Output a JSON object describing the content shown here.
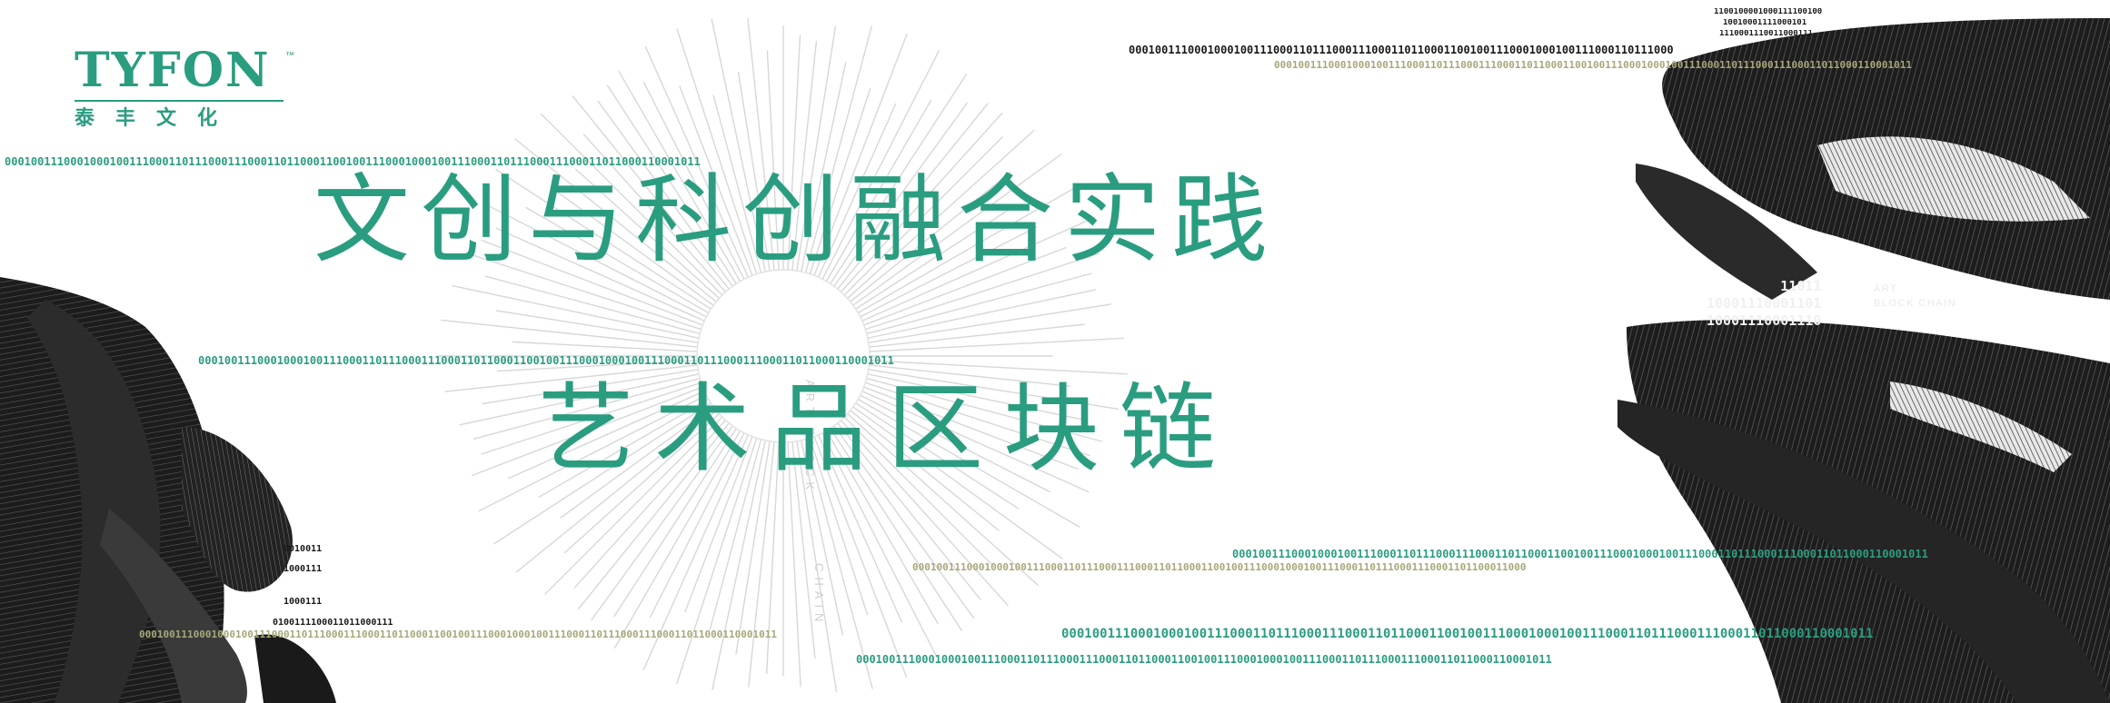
{
  "logo": {
    "wordmark": "TYFON",
    "trademark": "™",
    "chinese": "泰丰文化"
  },
  "headline": {
    "line1": "文创与科创融合实践",
    "line2": "艺术品区块链"
  },
  "binary": {
    "top_right_1": "0001001110001000100111000110111000111000110110001100100111000100010011100011011100011100011011000110001",
    "top_right_2": "0001001110001000100111000110111000111000110110001100100111000100010011100011011100011100011011000110001011",
    "top_left": "0001001110001000100111000110111000111000110110001100100111000100010011100011011100011100011011000110001011",
    "mid_left": "0001001110001000100111000110111000111000110110001100100111000100010011100011011100011100011011000110001011",
    "low_right_1": "0001001110001000100111000110111000111000110110001100100111000100010011100011011100011100011011000110001011",
    "low_right_2": "000100111000100010011100011011100011100011011000110010011100010001001110001101110001110001101100011000",
    "low_right_3": "0001001110001000100111000110111000111000110110001100100111000100010011100011011100011100011011000110001011",
    "bottom_left": "0001001110001000100111000110111000111000110110001100100111000100010011100011011100011100011011000110001011",
    "bottom_mid": "0001001110001000100111000110111000111000110110001100100111000100010011100011011100011100011011000110001011",
    "top_corner_1": "1100100001000111100100",
    "top_corner_2": "10010001111000101",
    "top_corner_3": "1110001110011000111",
    "left_small_1": "0010011",
    "left_small_2": "1000111",
    "left_small_3": "1000111",
    "left_small_4": "0100111100011011000111"
  },
  "side": {
    "bin_1": "11011",
    "bin_2": "10001110001101",
    "bin_3": "10001110001110",
    "art_line1": "ART",
    "art_line2": "BLOCK CHAIN"
  },
  "vertical": {
    "v1": "ART BLOCK",
    "v2": "CHAIN"
  }
}
